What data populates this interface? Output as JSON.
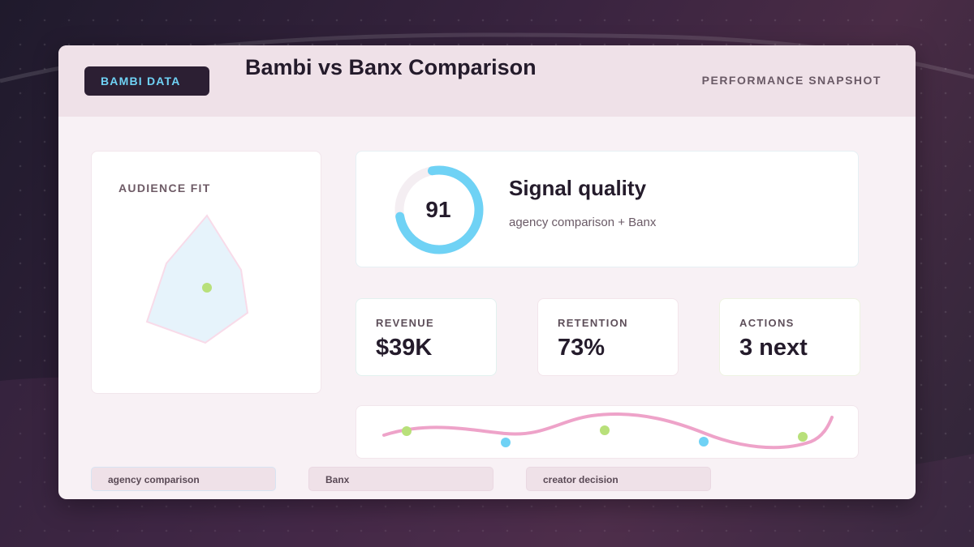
{
  "header": {
    "brand": "BAMBI DATA",
    "title": "Bambi vs Banx Comparison",
    "snapshot": "PERFORMANCE SNAPSHOT"
  },
  "audience": {
    "label": "AUDIENCE FIT"
  },
  "signal": {
    "score": "91",
    "score_value": 91,
    "title": "Signal quality",
    "subtitle": "agency comparison + Banx"
  },
  "metrics": [
    {
      "label": "REVENUE",
      "value": "$39K"
    },
    {
      "label": "RETENTION",
      "value": "73%"
    },
    {
      "label": "ACTIONS",
      "value": "3 next"
    }
  ],
  "chips": [
    {
      "label": "agency comparison"
    },
    {
      "label": "Banx"
    },
    {
      "label": "creator decision"
    }
  ],
  "colors": {
    "accent_cyan": "#6fd2f5",
    "accent_pink": "#eea3c9",
    "accent_green": "#b8e07a",
    "brand_dark": "#2c1f33"
  }
}
